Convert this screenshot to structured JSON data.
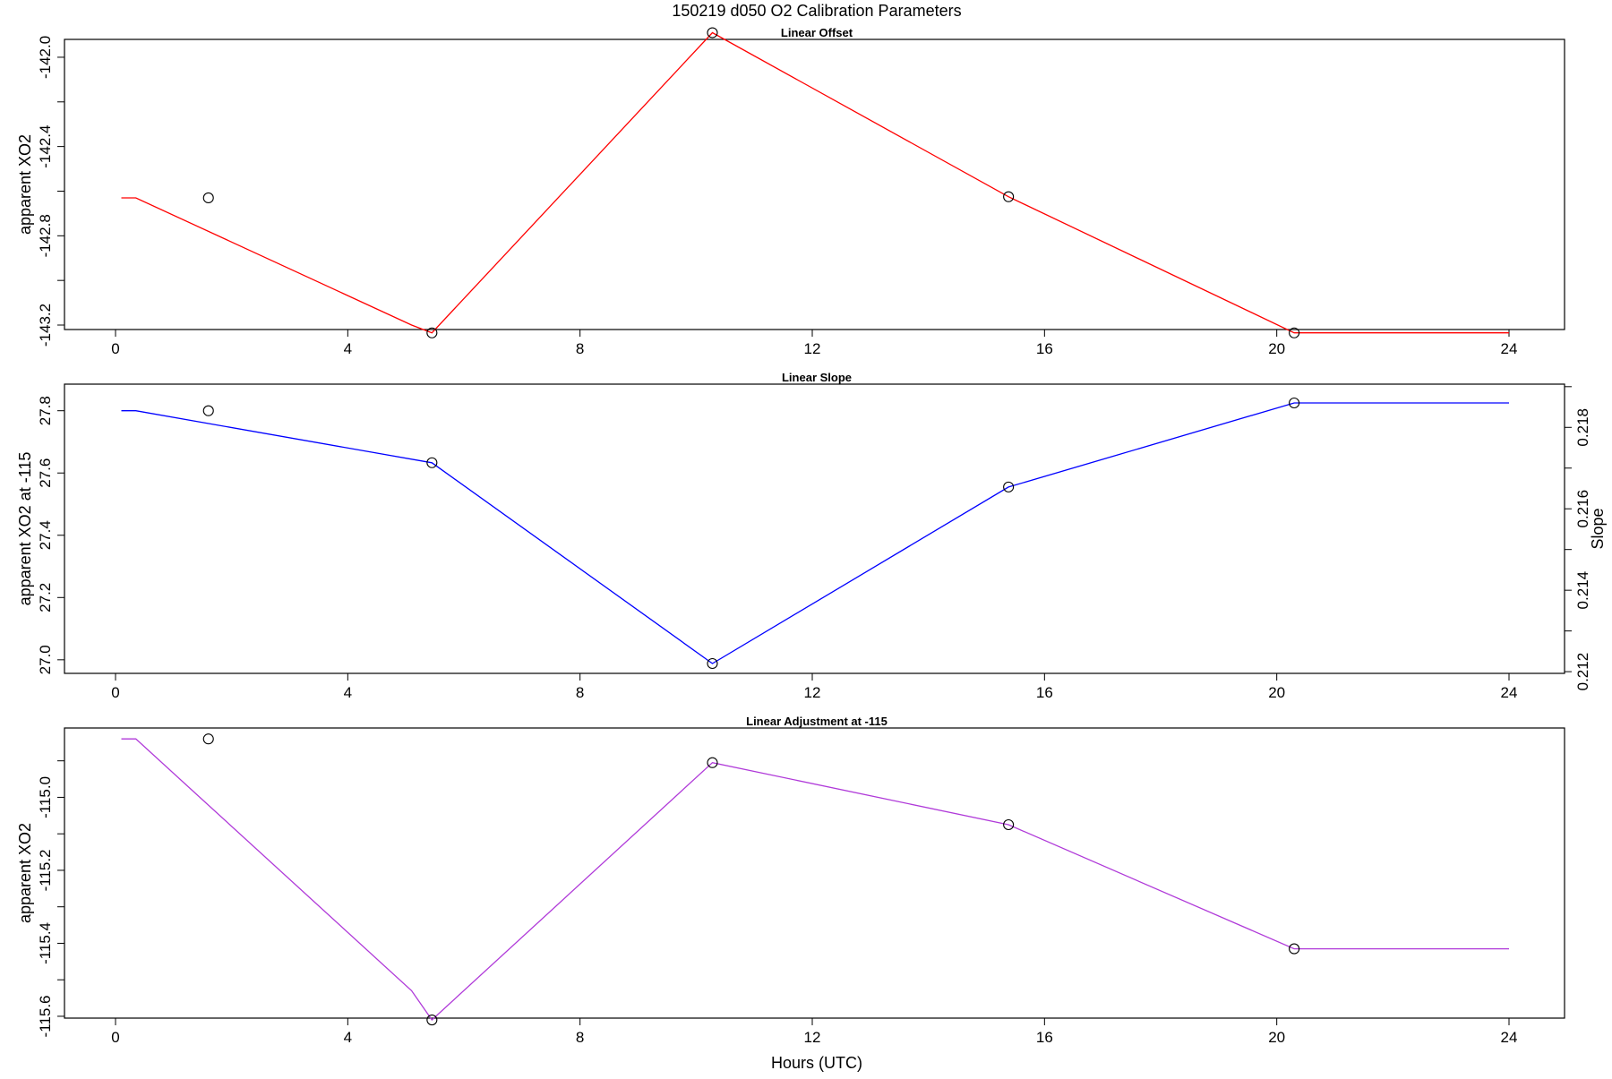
{
  "chart_data": {
    "title": "150219   d050   O2 Calibration Parameters",
    "xlabel": "Hours (UTC)",
    "xlim": [
      0,
      24
    ],
    "xticks": [
      0,
      4,
      8,
      12,
      16,
      20,
      24
    ],
    "panels": [
      {
        "title": "Linear Offset",
        "type": "line",
        "color": "#ff0000",
        "ylabel": "apparent XO2",
        "ylim": [
          -143.22,
          -141.92
        ],
        "yticks": [
          -142.0,
          -142.4,
          -142.8,
          -143.2
        ],
        "ytick_labels": [
          "-142.0",
          "-142.4",
          "-142.8",
          "-143.2"
        ],
        "y_minor_ticks": [
          -142.2,
          -142.6,
          -143.0
        ],
        "points": {
          "x": [
            1.6,
            5.45,
            10.28,
            15.38,
            20.3
          ],
          "y": [
            -142.63,
            -143.235,
            -141.89,
            -142.625,
            -143.235
          ]
        },
        "line": {
          "x": [
            0.1,
            0.35,
            5.1,
            5.45,
            10.28,
            15.38,
            20.3,
            24.0
          ],
          "y": [
            -142.63,
            -142.63,
            -143.2,
            -143.235,
            -141.89,
            -142.625,
            -143.235,
            -143.235
          ]
        }
      },
      {
        "title": "Linear Slope",
        "type": "line",
        "color": "#0000ff",
        "ylabel": "apparent XO2 at -115",
        "ylim": [
          -0.07,
          1.0
        ],
        "yticks": [
          27.0,
          27.2,
          27.4,
          27.6,
          27.8
        ],
        "ytick_labels": [
          "27.0",
          "27.2",
          "27.4",
          "27.6",
          "27.8"
        ],
        "y_minor_ticks": [],
        "points": {
          "x": [
            1.6,
            5.45,
            10.28,
            15.38,
            20.3
          ],
          "y": [
            27.8,
            27.633,
            26.988,
            27.555,
            27.825
          ]
        },
        "line": {
          "x": [
            0.1,
            0.35,
            5.45,
            10.28,
            15.38,
            20.3,
            24.0
          ],
          "y": [
            27.8,
            27.8,
            27.633,
            26.988,
            27.555,
            27.825,
            27.825
          ]
        },
        "y2label": "Slope",
        "y2ticks": [
          0.212,
          0.214,
          0.216,
          0.218
        ],
        "y2tick_labels": [
          "0.212",
          "0.214",
          "0.216",
          "0.218"
        ],
        "y2_minor_ticks": [
          0.213,
          0.215,
          0.217,
          0.219
        ]
      },
      {
        "title": "Linear Adjustment at -115",
        "type": "line",
        "color": "#b03ad9",
        "ylabel": "apparent XO2",
        "ylim": [
          -115.605,
          -114.81
        ],
        "yticks": [
          -115.0,
          -115.2,
          -115.4,
          -115.6
        ],
        "ytick_labels": [
          "-115.0",
          "-115.2",
          "-115.4",
          "-115.6"
        ],
        "y_minor_ticks": [
          -114.9,
          -115.1,
          -115.3,
          -115.5
        ],
        "points": {
          "x": [
            1.6,
            5.45,
            10.28,
            15.38,
            20.3
          ],
          "y": [
            -114.84,
            -115.61,
            -114.905,
            -115.075,
            -115.415
          ]
        },
        "line": {
          "x": [
            0.1,
            0.35,
            5.1,
            5.45,
            10.28,
            15.38,
            20.3,
            24.0
          ],
          "y": [
            -114.84,
            -114.84,
            -115.53,
            -115.61,
            -114.905,
            -115.075,
            -115.415,
            -115.415
          ]
        }
      }
    ]
  }
}
